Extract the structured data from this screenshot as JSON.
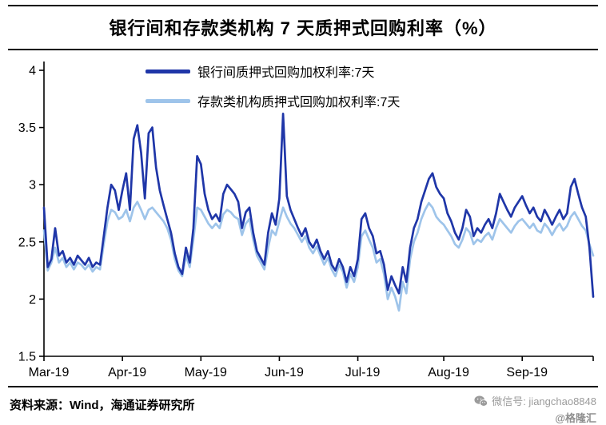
{
  "title": "银行间和存款类机构 7 天质押式回购利率（%）",
  "footer": {
    "source": "资料来源：Wind，海通证券研究所",
    "wechat_label": "微信号: jiangchao8848",
    "brand": "@格隆汇"
  },
  "colors": {
    "series_interbank": "#1F36A8",
    "series_depository": "#9EC4EA",
    "axis": "#000000",
    "watermark": "#9B9B9B"
  },
  "chart_data": {
    "type": "line",
    "title": "银行间和存款类机构 7 天质押式回购利率（%）",
    "xlabel": "",
    "ylabel": "",
    "ylim": [
      1.5,
      4
    ],
    "yticks": [
      4,
      3.5,
      3,
      2.5,
      2,
      1.5
    ],
    "ytick_labels": [
      "4",
      "3.5",
      "3",
      "2.5",
      "2",
      "1.5"
    ],
    "grid": false,
    "legend_position": "top-inside",
    "n_points": 148,
    "x_unit": "daily observations, Mar-2019 through early Oct-2019",
    "xtick_labels": [
      "Mar-19",
      "Apr-19",
      "May-19",
      "Jun-19",
      "Jul-19",
      "Aug-19",
      "Sep-19"
    ],
    "xtick_indices": [
      0,
      21,
      42,
      63,
      84,
      107,
      128
    ],
    "series": [
      {
        "name": "银行间质押式回购加权利率:7天",
        "color": "#1F36A8",
        "values": [
          2.8,
          2.28,
          2.35,
          2.62,
          2.38,
          2.42,
          2.32,
          2.36,
          2.3,
          2.38,
          2.34,
          2.3,
          2.36,
          2.28,
          2.32,
          2.3,
          2.55,
          2.8,
          3.0,
          2.95,
          2.78,
          2.95,
          3.1,
          2.78,
          3.4,
          3.52,
          3.28,
          2.88,
          3.45,
          3.5,
          3.15,
          2.95,
          2.82,
          2.7,
          2.58,
          2.4,
          2.28,
          2.22,
          2.45,
          2.32,
          2.62,
          3.25,
          3.18,
          2.92,
          2.78,
          2.7,
          2.74,
          2.68,
          2.92,
          3.0,
          2.96,
          2.92,
          2.85,
          2.62,
          2.76,
          2.8,
          2.58,
          2.42,
          2.36,
          2.3,
          2.58,
          2.75,
          2.65,
          2.88,
          3.62,
          2.9,
          2.78,
          2.7,
          2.62,
          2.55,
          2.62,
          2.5,
          2.45,
          2.52,
          2.42,
          2.35,
          2.42,
          2.3,
          2.25,
          2.35,
          2.28,
          2.15,
          2.28,
          2.2,
          2.35,
          2.7,
          2.75,
          2.62,
          2.55,
          2.4,
          2.42,
          2.3,
          2.08,
          2.2,
          2.12,
          2.05,
          2.28,
          2.15,
          2.45,
          2.62,
          2.7,
          2.85,
          2.95,
          3.05,
          3.1,
          2.98,
          2.92,
          2.88,
          2.75,
          2.68,
          2.58,
          2.52,
          2.62,
          2.78,
          2.72,
          2.55,
          2.62,
          2.58,
          2.65,
          2.7,
          2.62,
          2.75,
          2.92,
          2.85,
          2.78,
          2.72,
          2.8,
          2.85,
          2.9,
          2.82,
          2.75,
          2.8,
          2.72,
          2.68,
          2.78,
          2.72,
          2.65,
          2.72,
          2.78,
          2.7,
          2.75,
          2.98,
          3.05,
          2.92,
          2.8,
          2.72,
          2.45,
          2.02
        ]
      },
      {
        "name": "存款类机构质押式回购加权利率:7天",
        "color": "#9EC4EA",
        "values": [
          2.6,
          2.25,
          2.32,
          2.45,
          2.32,
          2.36,
          2.28,
          2.32,
          2.26,
          2.32,
          2.3,
          2.26,
          2.3,
          2.24,
          2.28,
          2.26,
          2.48,
          2.68,
          2.78,
          2.76,
          2.7,
          2.72,
          2.78,
          2.68,
          2.8,
          2.85,
          2.78,
          2.7,
          2.78,
          2.8,
          2.76,
          2.72,
          2.68,
          2.62,
          2.52,
          2.35,
          2.25,
          2.2,
          2.38,
          2.28,
          2.52,
          2.8,
          2.78,
          2.72,
          2.66,
          2.62,
          2.66,
          2.62,
          2.74,
          2.78,
          2.76,
          2.72,
          2.7,
          2.56,
          2.66,
          2.7,
          2.52,
          2.38,
          2.32,
          2.26,
          2.45,
          2.6,
          2.56,
          2.68,
          2.8,
          2.72,
          2.66,
          2.62,
          2.56,
          2.5,
          2.55,
          2.45,
          2.4,
          2.46,
          2.38,
          2.3,
          2.36,
          2.26,
          2.2,
          2.3,
          2.24,
          2.1,
          2.22,
          2.15,
          2.28,
          2.55,
          2.6,
          2.52,
          2.45,
          2.32,
          2.35,
          2.22,
          2.0,
          2.1,
          2.02,
          1.9,
          2.15,
          2.05,
          2.35,
          2.5,
          2.58,
          2.7,
          2.78,
          2.84,
          2.8,
          2.72,
          2.68,
          2.65,
          2.6,
          2.55,
          2.48,
          2.45,
          2.52,
          2.62,
          2.58,
          2.48,
          2.52,
          2.5,
          2.55,
          2.58,
          2.52,
          2.62,
          2.7,
          2.66,
          2.62,
          2.58,
          2.64,
          2.68,
          2.7,
          2.66,
          2.62,
          2.66,
          2.6,
          2.58,
          2.66,
          2.62,
          2.56,
          2.62,
          2.66,
          2.6,
          2.64,
          2.72,
          2.76,
          2.7,
          2.64,
          2.6,
          2.48,
          2.38
        ]
      }
    ]
  }
}
